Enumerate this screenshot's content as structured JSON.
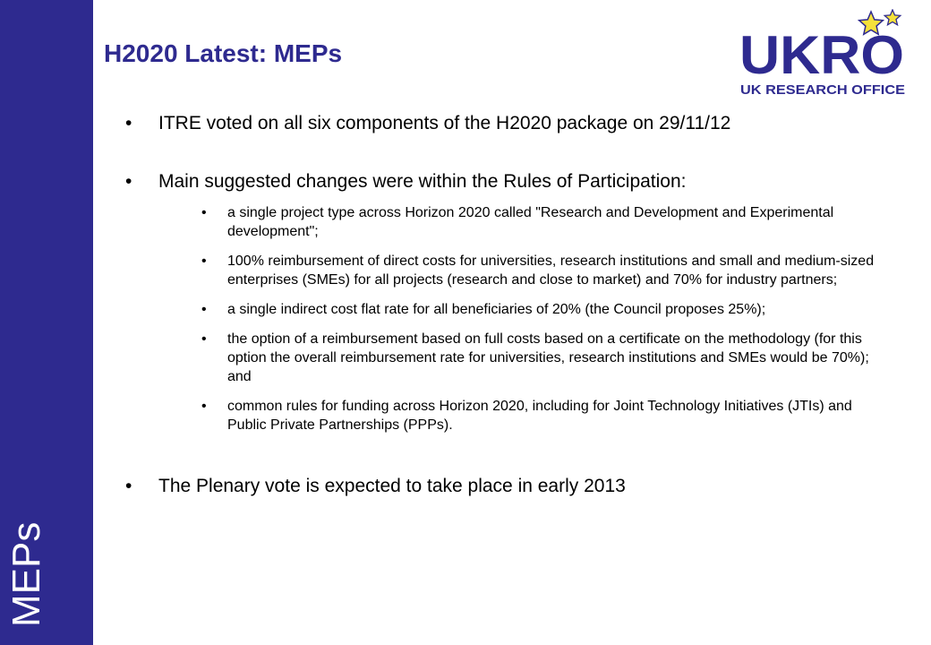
{
  "title": "H2020 Latest: MEPs",
  "side_label": "MEPs",
  "logo": {
    "text": "UKRO",
    "subtitle": "UK RESEARCH OFFICE",
    "colors": {
      "text": "#2e2a8f",
      "star": "#f5e13a"
    }
  },
  "colors": {
    "brand": "#2e2a8f",
    "body_text": "#000000"
  },
  "bullets": [
    {
      "text": "ITRE voted on all six components of the H2020 package on 29/11/12"
    },
    {
      "text": "Main suggested changes were within the Rules of Participation:",
      "sub": [
        "a single project type across Horizon 2020 called \"Research and Development and Experimental development\";",
        "100% reimbursement of direct costs for universities, research institutions and small and medium-sized enterprises (SMEs) for all projects (research and close to market) and 70% for industry partners;",
        "a single indirect cost flat rate for all beneficiaries of 20% (the Council proposes 25%);",
        "the option of a reimbursement based on full costs based on a certificate on the methodology (for this option the overall reimbursement rate for universities, research institutions and SMEs would be 70%); and",
        "common rules for funding across Horizon 2020, including for Joint Technology Initiatives (JTIs) and Public Private Partnerships (PPPs)."
      ]
    },
    {
      "text": "The Plenary vote is expected to take place in early 2013"
    }
  ]
}
